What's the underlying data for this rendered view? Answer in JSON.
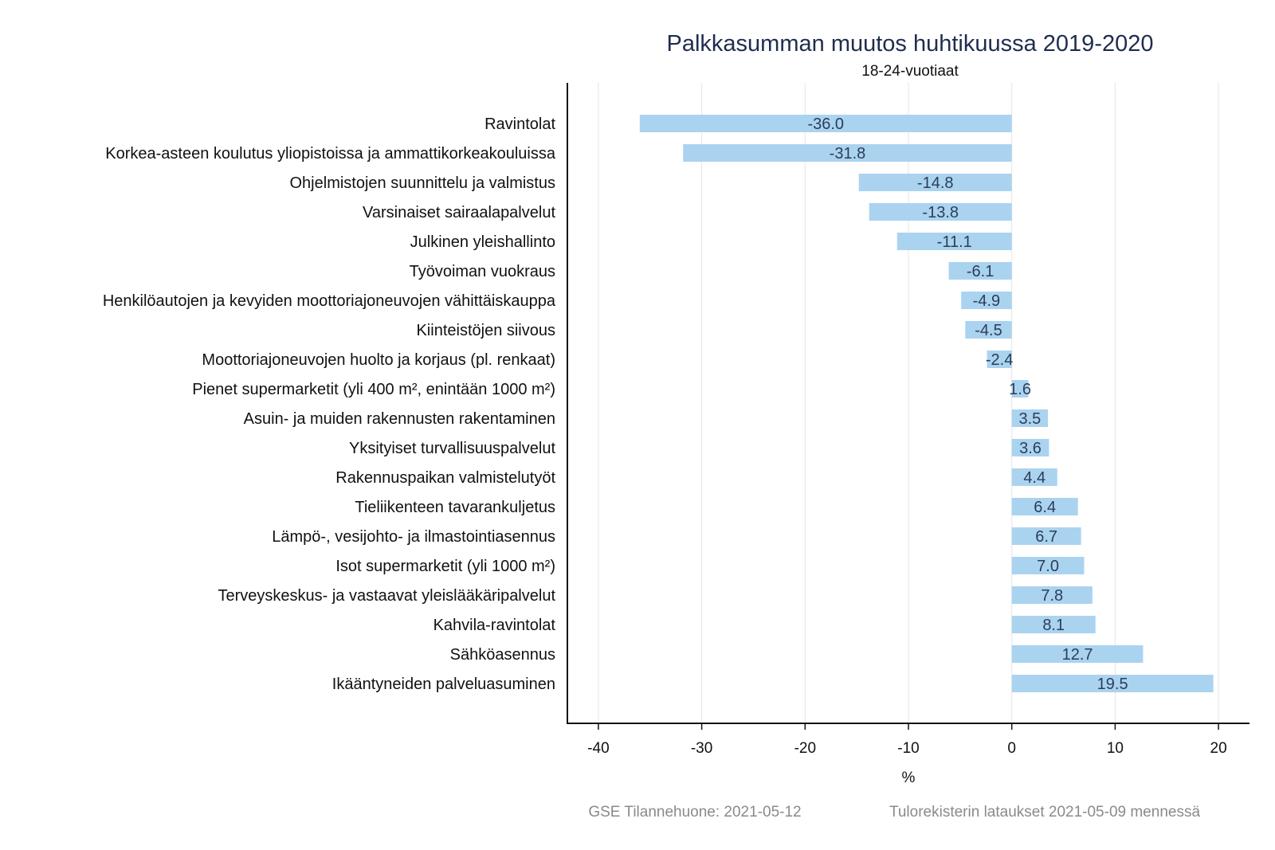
{
  "chart_data": {
    "type": "bar",
    "orientation": "horizontal",
    "title": "Palkkasumman muutos huhtikuussa 2019-2020",
    "subtitle": "18-24-vuotiaat",
    "xlabel": "%",
    "ylabel": "",
    "xlim": [
      -43,
      23
    ],
    "xticks": [
      -40,
      -30,
      -20,
      -10,
      0,
      10,
      20
    ],
    "xtick_labels": [
      "-40",
      "-30",
      "-20",
      "-10",
      "0",
      "10",
      "20"
    ],
    "grid": true,
    "bar_color": "#aad3f0",
    "categories": [
      "Ravintolat",
      "Korkea-asteen koulutus yliopistoissa ja ammattikorkeakouluissa",
      "Ohjelmistojen suunnittelu ja valmistus",
      "Varsinaiset sairaalapalvelut",
      "Julkinen yleishallinto",
      "Työvoiman vuokraus",
      "Henkilöautojen ja kevyiden moottoriajoneuvojen vähittäiskauppa",
      "Kiinteistöjen siivous",
      "Moottoriajoneuvojen huolto ja korjaus (pl. renkaat)",
      "Pienet supermarketit (yli 400 m², enintään 1000 m²)",
      "Asuin- ja muiden rakennusten rakentaminen",
      "Yksityiset turvallisuuspalvelut",
      "Rakennuspaikan valmistelutyöt",
      "Tieliikenteen tavarankuljetus",
      "Lämpö-, vesijohto- ja ilmastointiasennus",
      "Isot supermarketit (yli 1000 m²)",
      "Terveyskeskus- ja vastaavat yleislääkäripalvelut",
      "Kahvila-ravintolat",
      "Sähköasennus",
      "Ikääntyneiden palveluasuminen"
    ],
    "values": [
      -36.0,
      -31.8,
      -14.8,
      -13.8,
      -11.1,
      -6.1,
      -4.9,
      -4.5,
      -2.4,
      1.6,
      3.5,
      3.6,
      4.4,
      6.4,
      6.7,
      7.0,
      7.8,
      8.1,
      12.7,
      19.5
    ],
    "value_labels": [
      "-36.0",
      "-31.8",
      "-14.8",
      "-13.8",
      "-11.1",
      "-6.1",
      "-4.9",
      "-4.5",
      "-2.4",
      "1.6",
      "3.5",
      "3.6",
      "4.4",
      "6.4",
      "6.7",
      "7.0",
      "7.8",
      "8.1",
      "12.7",
      "19.5"
    ]
  },
  "footer": {
    "source": "GSE Tilannehuone: 2021-05-12",
    "note": "Tulorekisterin lataukset 2021-05-09 mennessä"
  }
}
